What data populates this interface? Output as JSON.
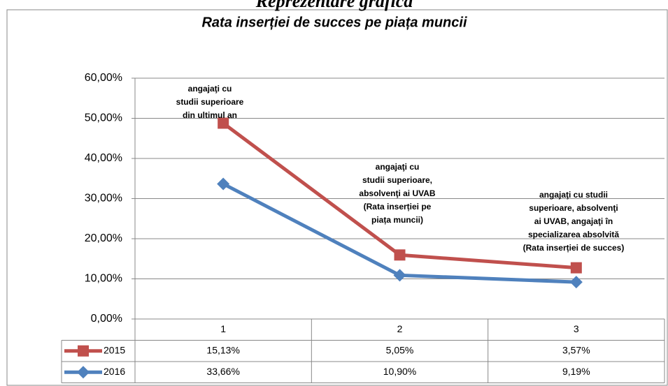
{
  "chart_data": {
    "type": "line",
    "stacked": true,
    "heading": "Reprezentare grafică",
    "title": "Rata inserției de succes pe piața muncii",
    "categories": [
      "1",
      "2",
      "3"
    ],
    "series": [
      {
        "name": "2015",
        "color": "#c0504d",
        "marker": "square",
        "values": [
          15.13,
          5.05,
          3.57
        ],
        "value_labels": [
          "15,13%",
          "5,05%",
          "3,57%"
        ]
      },
      {
        "name": "2016",
        "color": "#4f81bd",
        "marker": "diamond",
        "values": [
          33.66,
          10.9,
          9.19
        ],
        "value_labels": [
          "33,66%",
          "10,90%",
          "9,19%"
        ]
      }
    ],
    "ylim": [
      0,
      60
    ],
    "yticks": [
      {
        "value": 0,
        "label": "0,00%"
      },
      {
        "value": 10,
        "label": "10,00%"
      },
      {
        "value": 20,
        "label": "20,00%"
      },
      {
        "value": 30,
        "label": "30,00%"
      },
      {
        "value": 40,
        "label": "40,00%"
      },
      {
        "value": 50,
        "label": "50,00%"
      },
      {
        "value": 60,
        "label": "60,00%"
      }
    ],
    "grid": true,
    "annotations": [
      {
        "lines": [
          "angajaţi cu",
          "studii superioare",
          "din ultimul an"
        ]
      },
      {
        "lines": [
          "angajaţi cu",
          "studii superioare,",
          "absolvenţi ai UVAB",
          "(Rata inserției pe",
          "piața muncii)"
        ]
      },
      {
        "lines": [
          "angajaţi cu studii",
          "superioare, absolvenţi",
          "ai UVAB, angajaţi în",
          "specializarea absolvită",
          "(Rata inserției de succes)"
        ]
      }
    ]
  }
}
